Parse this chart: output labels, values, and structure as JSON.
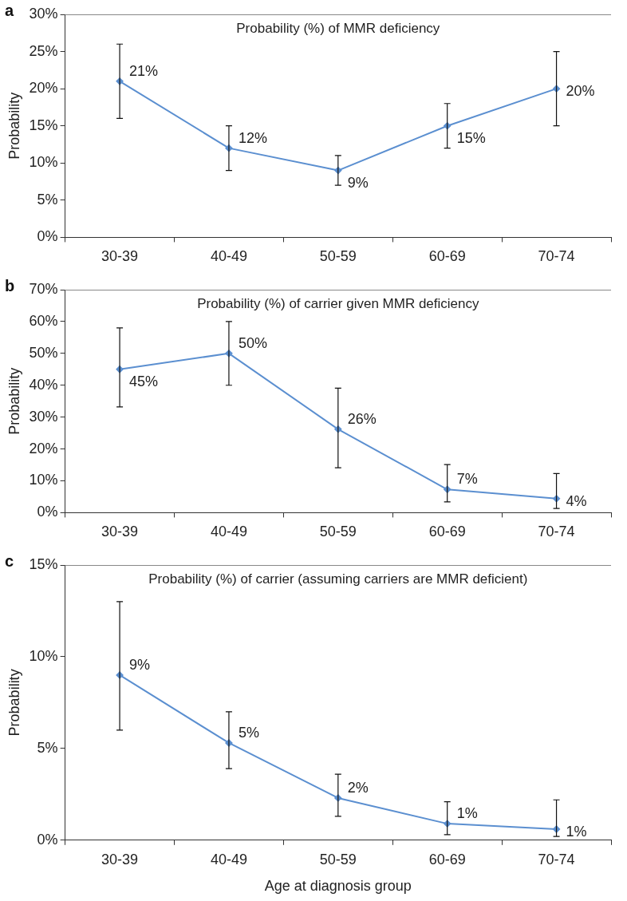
{
  "chart_data": [
    {
      "type": "line",
      "title": "Probability (%) of MMR deficiency",
      "ylabel": "Probability",
      "categories": [
        "30-39",
        "40-49",
        "50-59",
        "60-69",
        "70-74"
      ],
      "series": [
        {
          "color": "#5b8fd0",
          "values": [
            21,
            12,
            9,
            15,
            20
          ],
          "errors": [
            [
              16,
              26
            ],
            [
              9,
              15
            ],
            [
              7,
              11
            ],
            [
              12,
              18
            ],
            [
              15,
              25
            ]
          ],
          "value_labels": [
            "21%",
            "12%",
            "9%",
            "15%",
            "20%"
          ]
        }
      ],
      "ylim": [
        0,
        30
      ],
      "yticks": [
        {
          "value": 0,
          "label": "0%"
        },
        {
          "value": 5,
          "label": "5%"
        },
        {
          "value": 10,
          "label": "10%"
        },
        {
          "value": 15,
          "label": "15%"
        },
        {
          "value": 20,
          "label": "20%"
        },
        {
          "value": 25,
          "label": "25%"
        },
        {
          "value": 30,
          "label": "30%"
        }
      ],
      "marker": "diamond",
      "legend": false,
      "grid": false,
      "annotations": [
        "a"
      ]
    },
    {
      "type": "line",
      "title": "Probability (%) of carrier given MMR deficiency",
      "ylabel": "Probability",
      "categories": [
        "30-39",
        "40-49",
        "50-59",
        "60-69",
        "70-74"
      ],
      "series": [
        {
          "color": "#5b8fd0",
          "values": [
            45,
            50,
            26.2,
            7.3,
            4.4
          ],
          "errors": [
            [
              33.2,
              58
            ],
            [
              40,
              60
            ],
            [
              14.1,
              39.1
            ],
            [
              3.4,
              15.1
            ],
            [
              1.3,
              12.3
            ]
          ],
          "value_labels": [
            "45%",
            "50%",
            "26%",
            "7%",
            "4%"
          ]
        }
      ],
      "ylim": [
        0,
        70
      ],
      "yticks": [
        {
          "value": 0,
          "label": "0%"
        },
        {
          "value": 10,
          "label": "10%"
        },
        {
          "value": 20,
          "label": "20%"
        },
        {
          "value": 30,
          "label": "30%"
        },
        {
          "value": 40,
          "label": "40%"
        },
        {
          "value": 50,
          "label": "50%"
        },
        {
          "value": 60,
          "label": "60%"
        },
        {
          "value": 70,
          "label": "70%"
        }
      ],
      "marker": "diamond",
      "legend": false,
      "grid": false,
      "annotations": [
        "b"
      ]
    },
    {
      "type": "line",
      "title": "Probability (%) of carrier (assuming carriers are MMR deficient)",
      "xlabel": "Age at diagnosis group",
      "ylabel": "Probability",
      "categories": [
        "30-39",
        "40-49",
        "50-59",
        "60-69",
        "70-74"
      ],
      "series": [
        {
          "color": "#5b8fd0",
          "values": [
            9,
            5.3,
            2.3,
            0.9,
            0.6
          ],
          "errors": [
            [
              6,
              13
            ],
            [
              3.9,
              7
            ],
            [
              1.3,
              3.6
            ],
            [
              0.3,
              2.1
            ],
            [
              0.2,
              2.2
            ]
          ],
          "value_labels": [
            "9%",
            "5%",
            "2%",
            "1%",
            "1%"
          ]
        }
      ],
      "ylim": [
        0,
        15
      ],
      "yticks": [
        {
          "value": 0,
          "label": "0%"
        },
        {
          "value": 5,
          "label": "5%"
        },
        {
          "value": 10,
          "label": "10%"
        },
        {
          "value": 15,
          "label": "15%"
        }
      ],
      "marker": "diamond",
      "legend": false,
      "grid": false,
      "annotations": [
        "c"
      ]
    }
  ]
}
